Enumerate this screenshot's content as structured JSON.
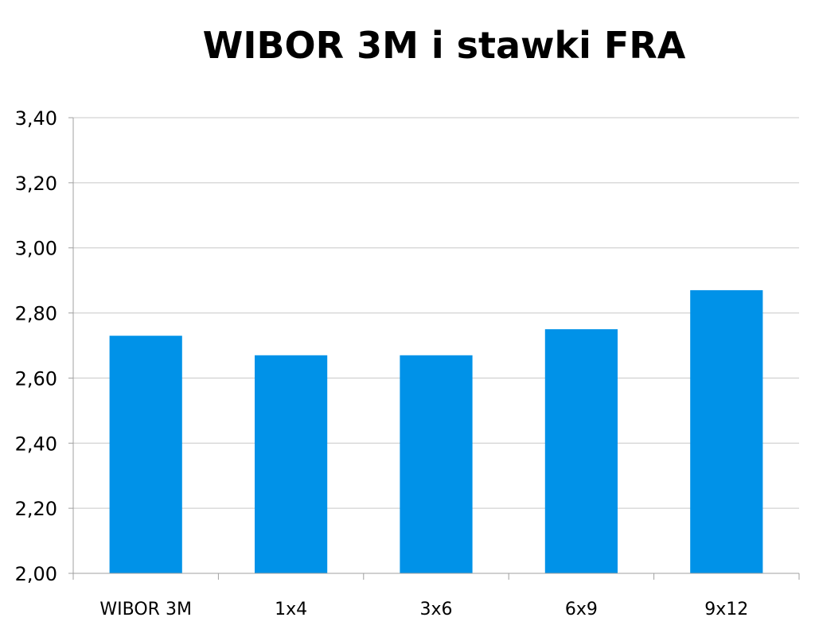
{
  "chart_data": {
    "type": "bar",
    "title": "WIBOR 3M i stawki FRA",
    "xlabel": "",
    "ylabel": "",
    "categories": [
      "WIBOR 3M",
      "1x4",
      "3x6",
      "6x9",
      "9x12"
    ],
    "values": [
      2.73,
      2.67,
      2.67,
      2.75,
      2.87
    ],
    "ylim": [
      2.0,
      3.4
    ],
    "yticks": [
      2.0,
      2.2,
      2.4,
      2.6,
      2.8,
      3.0,
      3.2,
      3.4
    ],
    "ytick_labels": [
      "2,00",
      "2,20",
      "2,40",
      "2,60",
      "2,80",
      "3,00",
      "3,20",
      "3,40"
    ],
    "grid": true,
    "bar_color": "#0092E8",
    "grid_color": "#C8C8C8",
    "axis_color": "#A0A0A0"
  }
}
